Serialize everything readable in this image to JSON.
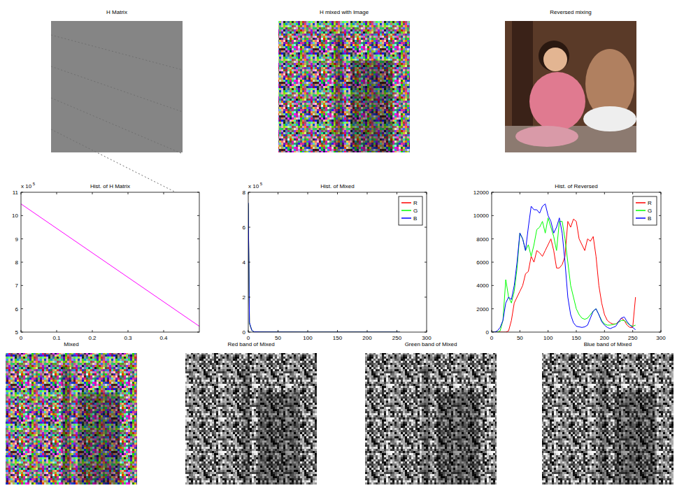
{
  "chart_data": [
    {
      "type": "image",
      "title": "H Matrix"
    },
    {
      "type": "image",
      "title": "H mixed with Image"
    },
    {
      "type": "image",
      "title": "Reversed mixing"
    },
    {
      "type": "line",
      "title": "Hist. of H Matrix",
      "y_scale_note": {
        "text": "x 10",
        "exponent": 5
      },
      "x": [
        0,
        0.5
      ],
      "values": [
        10.5,
        5.25
      ],
      "color": "#ff00ff",
      "xlim": [
        0,
        0.5
      ],
      "xticks": [
        0,
        0.1,
        0.2,
        0.3,
        0.4
      ],
      "ylim": [
        5,
        11
      ],
      "yticks": [
        5,
        6,
        7,
        8,
        9,
        10,
        11
      ]
    },
    {
      "type": "line",
      "title": "Hist. of Mixed",
      "y_scale_note": {
        "text": "x 10",
        "exponent": 5
      },
      "x": [
        0,
        2,
        4,
        6,
        8,
        10,
        20,
        100,
        255
      ],
      "series": [
        {
          "name": "R",
          "color": "#ff0000",
          "values": [
            7.3,
            0.5,
            0.3,
            0.1,
            0.05,
            0.02,
            0.01,
            0,
            0
          ]
        },
        {
          "name": "G",
          "color": "#00ff00",
          "values": [
            7.35,
            0.5,
            0.3,
            0.1,
            0.05,
            0.02,
            0.01,
            0,
            0
          ]
        },
        {
          "name": "B",
          "color": "#0000ff",
          "values": [
            7.4,
            0.55,
            0.3,
            0.1,
            0.05,
            0.02,
            0.01,
            0,
            0
          ]
        }
      ],
      "legend": "northeast",
      "xlim": [
        0,
        300
      ],
      "xticks": [
        0,
        50,
        100,
        150,
        200,
        250,
        300
      ],
      "ylim": [
        0,
        8
      ],
      "yticks": [
        0,
        2,
        4,
        6,
        8
      ]
    },
    {
      "type": "line",
      "title": "Hist. of Reversed",
      "x": [
        0,
        5,
        10,
        15,
        20,
        25,
        30,
        35,
        40,
        45,
        50,
        55,
        60,
        65,
        70,
        75,
        80,
        85,
        90,
        95,
        100,
        105,
        110,
        115,
        120,
        125,
        130,
        135,
        140,
        145,
        150,
        155,
        160,
        165,
        170,
        175,
        180,
        185,
        190,
        195,
        200,
        205,
        210,
        215,
        220,
        225,
        230,
        235,
        240,
        245,
        250,
        255
      ],
      "series": [
        {
          "name": "R",
          "color": "#ff0000",
          "values": [
            0,
            0,
            0,
            0,
            0,
            0,
            100,
            1000,
            2500,
            3000,
            3500,
            4000,
            5000,
            5200,
            6500,
            6000,
            7000,
            6800,
            6500,
            7000,
            7500,
            8000,
            7000,
            5500,
            5500,
            5800,
            6500,
            9500,
            9000,
            9700,
            9500,
            8000,
            7500,
            7000,
            8000,
            7800,
            8200,
            6500,
            4000,
            2500,
            1500,
            1000,
            800,
            700,
            700,
            900,
            1200,
            1000,
            600,
            400,
            400,
            3000
          ]
        },
        {
          "name": "G",
          "color": "#00ff00",
          "values": [
            0,
            0,
            0,
            100,
            1000,
            4500,
            3000,
            2500,
            3500,
            5500,
            8500,
            8000,
            7000,
            7500,
            6500,
            7500,
            8800,
            9000,
            9500,
            8500,
            9800,
            9000,
            8200,
            7000,
            9500,
            9500,
            8000,
            6000,
            4000,
            3000,
            2000,
            1500,
            1200,
            1100,
            1200,
            1500,
            1800,
            2000,
            1500,
            1000,
            700,
            600,
            600,
            650,
            700,
            850,
            1000,
            1000,
            800,
            600,
            500,
            600
          ]
        },
        {
          "name": "B",
          "color": "#0000ff",
          "values": [
            0,
            0,
            100,
            400,
            1000,
            2500,
            3000,
            2800,
            4000,
            6000,
            8500,
            8000,
            7000,
            9000,
            10800,
            10500,
            10500,
            10200,
            10800,
            11000,
            10000,
            9500,
            8500,
            9000,
            9800,
            8500,
            6000,
            3000,
            1500,
            800,
            500,
            450,
            400,
            450,
            600,
            1200,
            1800,
            2000,
            1500,
            900,
            600,
            400,
            300,
            400,
            500,
            900,
            1200,
            1300,
            900,
            600,
            400,
            200
          ]
        }
      ],
      "legend": "northeast",
      "xlim": [
        0,
        300
      ],
      "xticks": [
        0,
        50,
        100,
        150,
        200,
        250,
        300
      ],
      "ylim": [
        0,
        12000
      ],
      "yticks": [
        0,
        2000,
        4000,
        6000,
        8000,
        10000,
        12000
      ]
    },
    {
      "type": "image",
      "title": "Mixed"
    },
    {
      "type": "image",
      "title": "Red band of Mixed"
    },
    {
      "type": "image",
      "title": "Green band of Mixed"
    },
    {
      "type": "image",
      "title": "Blue band of Mixed"
    }
  ]
}
